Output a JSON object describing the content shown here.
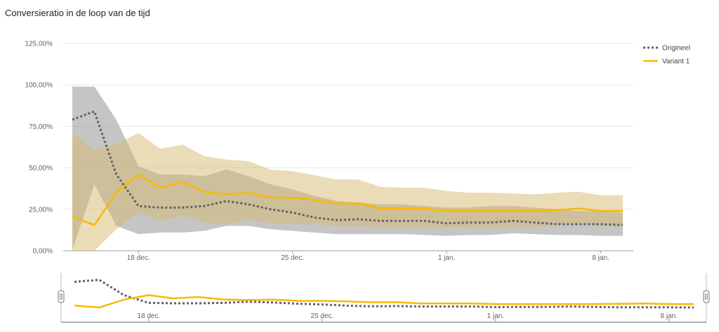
{
  "chart_data": {
    "type": "line",
    "title": "Conversieratio in de loop van de tijd",
    "x_labels": [
      "18 dec.",
      "25 dec.",
      "1 jan.",
      "8 jan."
    ],
    "y_ticks": [
      "0,00%",
      "25,00%",
      "50,00%",
      "75,00%",
      "100,00%",
      "125,00%"
    ],
    "ylim": [
      0,
      125
    ],
    "grid": true,
    "legend_position": "top-right",
    "x": [
      "15 dec.",
      "16 dec.",
      "17 dec.",
      "18 dec.",
      "19 dec.",
      "20 dec.",
      "21 dec.",
      "22 dec.",
      "23 dec.",
      "24 dec.",
      "25 dec.",
      "26 dec.",
      "27 dec.",
      "28 dec.",
      "29 dec.",
      "30 dec.",
      "31 dec.",
      "1 jan.",
      "2 jan.",
      "3 jan.",
      "4 jan.",
      "5 jan.",
      "6 jan.",
      "7 jan.",
      "8 jan.",
      "9 jan."
    ],
    "series": [
      {
        "name": "Origineel",
        "color": "#616161",
        "style": "dotted",
        "values": [
          79,
          84,
          46,
          27,
          26,
          26,
          27,
          30,
          28,
          25,
          23,
          20,
          18.5,
          19,
          18,
          18,
          18,
          16.5,
          17,
          17,
          18,
          17,
          16,
          16,
          16,
          15.5
        ],
        "upper": [
          99,
          99,
          79,
          51,
          46,
          46,
          45,
          49,
          45,
          40,
          37,
          33,
          30,
          29,
          28,
          28,
          27,
          26,
          26,
          27,
          27,
          26,
          25,
          24,
          24,
          23
        ],
        "lower": [
          0.5,
          40,
          15,
          10,
          11,
          11,
          12,
          15,
          15,
          13,
          12,
          11,
          10,
          10,
          10,
          10,
          9.5,
          9,
          9.5,
          9.5,
          10.5,
          10,
          9.5,
          9.5,
          9,
          9
        ]
      },
      {
        "name": "Variant 1",
        "color": "#f9b900",
        "style": "solid",
        "values": [
          20.5,
          15.5,
          35,
          46,
          38,
          41.5,
          35.5,
          34,
          35,
          32,
          32,
          30.5,
          28.5,
          28.5,
          25.5,
          25.5,
          25.5,
          24,
          24,
          24,
          24,
          24,
          24.5,
          25.5,
          24,
          24
        ],
        "upper": [
          71,
          61,
          64,
          71,
          61.5,
          64,
          57,
          55,
          54,
          49,
          48,
          45.5,
          43,
          43,
          38.5,
          38,
          38,
          36,
          35,
          35,
          34.5,
          34,
          35,
          35.5,
          33.5,
          33.5
        ],
        "lower": [
          0,
          0,
          13,
          23,
          18,
          21,
          17,
          16,
          19,
          16.5,
          16,
          16,
          15,
          15,
          14,
          14,
          14,
          14,
          14,
          14,
          14.5,
          14.5,
          15,
          16.5,
          15,
          15
        ]
      }
    ]
  }
}
